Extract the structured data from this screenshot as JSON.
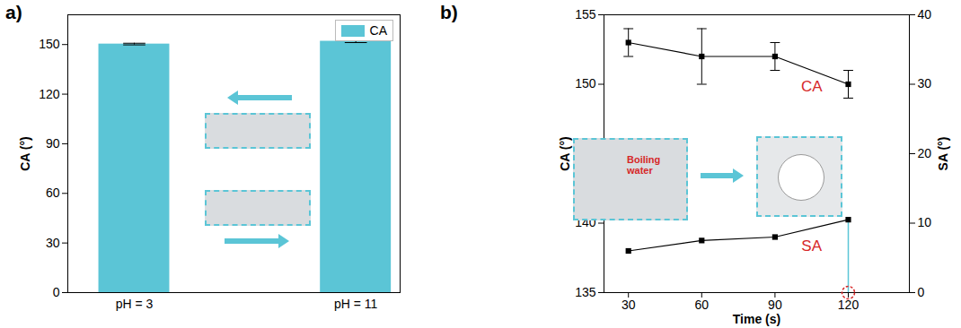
{
  "chart_data": [
    {
      "type": "bar",
      "title": "a)",
      "categories": [
        "pH = 3",
        "pH = 11"
      ],
      "series": [
        {
          "name": "CA",
          "color": "#5BC5D6",
          "values": [
            150.3,
            152.0
          ],
          "errors": [
            0.5,
            0.8
          ]
        }
      ],
      "y_label": "CA (°)",
      "ylim": [
        0,
        168
      ],
      "yticks": [
        0,
        30,
        60,
        90,
        120,
        150
      ],
      "legend": "top-right"
    },
    {
      "type": "line",
      "title": "b)",
      "x": [
        30,
        60,
        90,
        120
      ],
      "x_label": "Time (s)",
      "y_label": "CA (°)",
      "y2_label": "SA (°)",
      "xlim": [
        20,
        145
      ],
      "xticks": [
        30,
        60,
        90,
        120
      ],
      "ylim": [
        135,
        155
      ],
      "yticks": [
        135,
        140,
        145,
        150,
        155
      ],
      "y2lim": [
        0,
        40
      ],
      "y2ticks": [
        0,
        10,
        20,
        30,
        40
      ],
      "series": [
        {
          "name": "CA",
          "color": "#000000",
          "marker": "square",
          "values": [
            153,
            152,
            152,
            150
          ],
          "errors": [
            1,
            2,
            1,
            1
          ]
        },
        {
          "name": "SA",
          "color": "#000000",
          "marker": "square",
          "axis": "y2",
          "values": [
            6,
            7.5,
            8,
            10.5
          ]
        }
      ],
      "annotations": [
        "Boiling water"
      ]
    }
  ]
}
